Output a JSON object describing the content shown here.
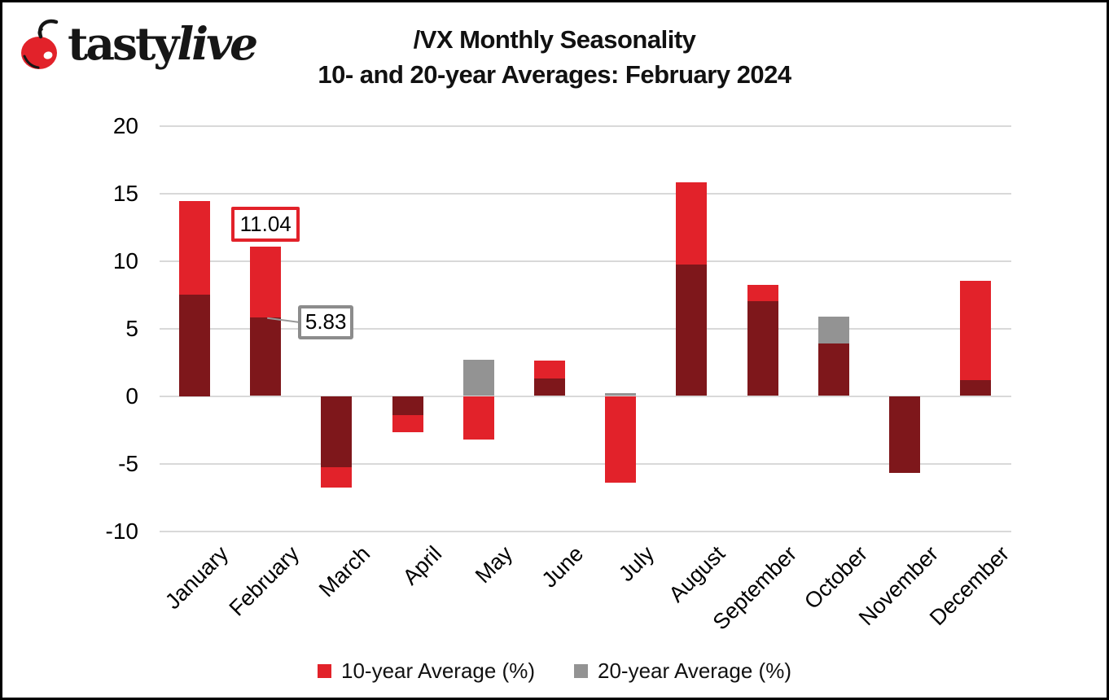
{
  "logo": {
    "text_regular": "tasty",
    "text_italic": "live",
    "cherry_color": "#E2222A"
  },
  "title": {
    "line1": "/VX Monthly Seasonality",
    "line2": "10- and 20-year Averages: February 2024"
  },
  "chart_data": {
    "type": "bar",
    "categories": [
      "January",
      "February",
      "March",
      "April",
      "May",
      "June",
      "July",
      "August",
      "September",
      "October",
      "November",
      "December"
    ],
    "series": [
      {
        "name": "10-year Average (%)",
        "color": "#E2222A",
        "values": [
          14.4,
          11.04,
          -6.8,
          -2.7,
          -3.2,
          2.6,
          -6.4,
          15.8,
          8.2,
          3.9,
          -5.7,
          8.5
        ]
      },
      {
        "name": "20-year Average (%)",
        "color": "#939393",
        "values": [
          7.5,
          5.83,
          -5.3,
          -1.4,
          2.7,
          1.3,
          0.2,
          9.7,
          7.0,
          5.9,
          -5.7,
          1.2
        ]
      }
    ],
    "overlap_color": "#7E171B",
    "ylim": [
      -10,
      20
    ],
    "yticks": [
      20,
      15,
      10,
      5,
      0,
      -5,
      -10
    ],
    "grid": true,
    "gridline_color": "#D9D9D9",
    "legend_position": "bottom",
    "annotations": [
      {
        "text": "11.04",
        "value": 11.04,
        "month": "February",
        "series": "10-year Average (%)",
        "border_color": "#E2222A"
      },
      {
        "text": "5.83",
        "value": 5.83,
        "month": "February",
        "series": "20-year Average (%)",
        "border_color": "#8C8C8C",
        "leader_color": "#999999"
      }
    ]
  },
  "legend": {
    "items": [
      {
        "label": "10-year Average (%)",
        "color": "#E2222A"
      },
      {
        "label": "20-year Average (%)",
        "color": "#939393"
      }
    ]
  }
}
